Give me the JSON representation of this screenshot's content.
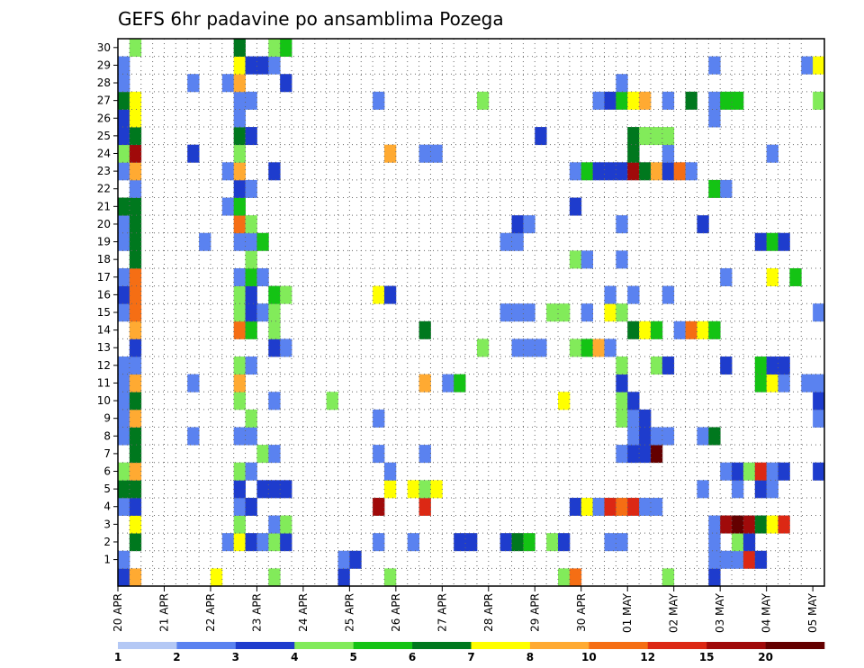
{
  "chart_data": {
    "type": "heatmap",
    "title": "GEFS 6hr padavine po ansamblima Pozega",
    "xlabel": "",
    "ylabel": "",
    "x_tick_labels": [
      "20 APR",
      "21 APR",
      "22 APR",
      "23 APR",
      "24 APR",
      "25 APR",
      "26 APR",
      "27 APR",
      "28 APR",
      "29 APR",
      "30 APR",
      "01 MAY",
      "02 MAY",
      "03 MAY",
      "04 MAY",
      "05 MAY"
    ],
    "y_tick_labels": [
      "1",
      "2",
      "3",
      "4",
      "5",
      "6",
      "7",
      "8",
      "9",
      "10",
      "11",
      "12",
      "13",
      "14",
      "15",
      "16",
      "17",
      "18",
      "19",
      "20",
      "21",
      "22",
      "23",
      "24",
      "25",
      "26",
      "27",
      "28",
      "29",
      "30"
    ],
    "steps_per_day": 4,
    "x_steps": 61,
    "y_members": 31,
    "grid": true,
    "colorbar": {
      "levels": [
        1,
        2,
        3,
        4,
        5,
        6,
        7,
        8,
        10,
        12,
        15,
        20
      ],
      "colors": [
        "#b4c8f5",
        "#5a82f0",
        "#1e3ccd",
        "#82eb5a",
        "#14c314",
        "#00781e",
        "#ffff00",
        "#ffaa32",
        "#f56e14",
        "#dc2814",
        "#a00a0a",
        "#640000"
      ]
    },
    "cells": [
      [
        0,
        0,
        2
      ],
      [
        1,
        0,
        7
      ],
      [
        8,
        0,
        6
      ],
      [
        13,
        0,
        3
      ],
      [
        19,
        0,
        2
      ],
      [
        23,
        0,
        3
      ],
      [
        38,
        0,
        3
      ],
      [
        39,
        0,
        8
      ],
      [
        47,
        0,
        3
      ],
      [
        51,
        0,
        2
      ],
      [
        0,
        1,
        1
      ],
      [
        19,
        1,
        1
      ],
      [
        20,
        1,
        2
      ],
      [
        51,
        1,
        1
      ],
      [
        52,
        1,
        1
      ],
      [
        53,
        1,
        1
      ],
      [
        54,
        1,
        9
      ],
      [
        55,
        1,
        2
      ],
      [
        1,
        2,
        5
      ],
      [
        9,
        2,
        1
      ],
      [
        10,
        2,
        6
      ],
      [
        11,
        2,
        2
      ],
      [
        12,
        2,
        1
      ],
      [
        13,
        2,
        3
      ],
      [
        14,
        2,
        2
      ],
      [
        22,
        2,
        1
      ],
      [
        25,
        2,
        1
      ],
      [
        29,
        2,
        2
      ],
      [
        30,
        2,
        2
      ],
      [
        33,
        2,
        2
      ],
      [
        34,
        2,
        5
      ],
      [
        35,
        2,
        4
      ],
      [
        37,
        2,
        3
      ],
      [
        38,
        2,
        2
      ],
      [
        42,
        2,
        1
      ],
      [
        43,
        2,
        1
      ],
      [
        51,
        2,
        1
      ],
      [
        53,
        2,
        3
      ],
      [
        54,
        2,
        2
      ],
      [
        1,
        3,
        6
      ],
      [
        10,
        3,
        3
      ],
      [
        13,
        3,
        1
      ],
      [
        14,
        3,
        3
      ],
      [
        51,
        3,
        1
      ],
      [
        52,
        3,
        10
      ],
      [
        53,
        3,
        11
      ],
      [
        54,
        3,
        10
      ],
      [
        55,
        3,
        5
      ],
      [
        56,
        3,
        6
      ],
      [
        57,
        3,
        9
      ],
      [
        0,
        4,
        1
      ],
      [
        1,
        4,
        2
      ],
      [
        10,
        4,
        1
      ],
      [
        11,
        4,
        2
      ],
      [
        22,
        4,
        10
      ],
      [
        26,
        4,
        9
      ],
      [
        39,
        4,
        2
      ],
      [
        40,
        4,
        6
      ],
      [
        41,
        4,
        1
      ],
      [
        42,
        4,
        9
      ],
      [
        43,
        4,
        8
      ],
      [
        44,
        4,
        9
      ],
      [
        45,
        4,
        1
      ],
      [
        46,
        4,
        1
      ],
      [
        0,
        5,
        5
      ],
      [
        1,
        5,
        5
      ],
      [
        10,
        5,
        2
      ],
      [
        12,
        5,
        2
      ],
      [
        13,
        5,
        2
      ],
      [
        14,
        5,
        2
      ],
      [
        23,
        5,
        6
      ],
      [
        25,
        5,
        6
      ],
      [
        26,
        5,
        3
      ],
      [
        27,
        5,
        6
      ],
      [
        50,
        5,
        1
      ],
      [
        53,
        5,
        1
      ],
      [
        55,
        5,
        2
      ],
      [
        56,
        5,
        1
      ],
      [
        0,
        6,
        3
      ],
      [
        1,
        6,
        7
      ],
      [
        10,
        6,
        3
      ],
      [
        11,
        6,
        1
      ],
      [
        23,
        6,
        1
      ],
      [
        52,
        6,
        1
      ],
      [
        53,
        6,
        2
      ],
      [
        54,
        6,
        3
      ],
      [
        55,
        6,
        9
      ],
      [
        56,
        6,
        1
      ],
      [
        57,
        6,
        2
      ],
      [
        60,
        6,
        2
      ],
      [
        1,
        7,
        5
      ],
      [
        12,
        7,
        3
      ],
      [
        13,
        7,
        1
      ],
      [
        22,
        7,
        1
      ],
      [
        26,
        7,
        1
      ],
      [
        43,
        7,
        1
      ],
      [
        44,
        7,
        2
      ],
      [
        45,
        7,
        2
      ],
      [
        46,
        7,
        11
      ],
      [
        0,
        8,
        1
      ],
      [
        1,
        8,
        5
      ],
      [
        6,
        8,
        1
      ],
      [
        10,
        8,
        1
      ],
      [
        11,
        8,
        1
      ],
      [
        44,
        8,
        1
      ],
      [
        45,
        8,
        2
      ],
      [
        46,
        8,
        1
      ],
      [
        47,
        8,
        1
      ],
      [
        50,
        8,
        1
      ],
      [
        51,
        8,
        5
      ],
      [
        0,
        9,
        1
      ],
      [
        1,
        9,
        7
      ],
      [
        11,
        9,
        3
      ],
      [
        22,
        9,
        1
      ],
      [
        43,
        9,
        3
      ],
      [
        44,
        9,
        1
      ],
      [
        45,
        9,
        2
      ],
      [
        60,
        9,
        1
      ],
      [
        0,
        10,
        1
      ],
      [
        1,
        10,
        5
      ],
      [
        10,
        10,
        3
      ],
      [
        13,
        10,
        1
      ],
      [
        18,
        10,
        3
      ],
      [
        38,
        10,
        6
      ],
      [
        43,
        10,
        3
      ],
      [
        44,
        10,
        2
      ],
      [
        60,
        10,
        2
      ],
      [
        0,
        11,
        1
      ],
      [
        1,
        11,
        7
      ],
      [
        6,
        11,
        1
      ],
      [
        10,
        11,
        7
      ],
      [
        26,
        11,
        7
      ],
      [
        28,
        11,
        1
      ],
      [
        29,
        11,
        4
      ],
      [
        43,
        11,
        2
      ],
      [
        55,
        11,
        4
      ],
      [
        56,
        11,
        6
      ],
      [
        57,
        11,
        1
      ],
      [
        59,
        11,
        1
      ],
      [
        60,
        11,
        1
      ],
      [
        0,
        12,
        1
      ],
      [
        1,
        12,
        1
      ],
      [
        10,
        12,
        3
      ],
      [
        11,
        12,
        1
      ],
      [
        43,
        12,
        3
      ],
      [
        46,
        12,
        3
      ],
      [
        47,
        12,
        2
      ],
      [
        52,
        12,
        2
      ],
      [
        55,
        12,
        4
      ],
      [
        56,
        12,
        2
      ],
      [
        57,
        12,
        2
      ],
      [
        1,
        13,
        2
      ],
      [
        13,
        13,
        2
      ],
      [
        14,
        13,
        1
      ],
      [
        31,
        13,
        3
      ],
      [
        34,
        13,
        1
      ],
      [
        35,
        13,
        1
      ],
      [
        36,
        13,
        1
      ],
      [
        39,
        13,
        3
      ],
      [
        40,
        13,
        4
      ],
      [
        41,
        13,
        7
      ],
      [
        42,
        13,
        1
      ],
      [
        1,
        14,
        7
      ],
      [
        10,
        14,
        8
      ],
      [
        11,
        14,
        4
      ],
      [
        13,
        14,
        3
      ],
      [
        26,
        14,
        5
      ],
      [
        44,
        14,
        5
      ],
      [
        45,
        14,
        6
      ],
      [
        46,
        14,
        4
      ],
      [
        48,
        14,
        1
      ],
      [
        49,
        14,
        8
      ],
      [
        50,
        14,
        6
      ],
      [
        51,
        14,
        4
      ],
      [
        0,
        15,
        1
      ],
      [
        1,
        15,
        8
      ],
      [
        10,
        15,
        3
      ],
      [
        11,
        15,
        2
      ],
      [
        12,
        15,
        1
      ],
      [
        13,
        15,
        3
      ],
      [
        33,
        15,
        1
      ],
      [
        34,
        15,
        1
      ],
      [
        35,
        15,
        1
      ],
      [
        37,
        15,
        3
      ],
      [
        38,
        15,
        3
      ],
      [
        40,
        15,
        1
      ],
      [
        42,
        15,
        6
      ],
      [
        43,
        15,
        3
      ],
      [
        60,
        15,
        1
      ],
      [
        0,
        16,
        2
      ],
      [
        1,
        16,
        8
      ],
      [
        10,
        16,
        3
      ],
      [
        11,
        16,
        2
      ],
      [
        13,
        16,
        4
      ],
      [
        14,
        16,
        3
      ],
      [
        22,
        16,
        6
      ],
      [
        23,
        16,
        2
      ],
      [
        42,
        16,
        1
      ],
      [
        44,
        16,
        1
      ],
      [
        47,
        16,
        1
      ],
      [
        0,
        17,
        1
      ],
      [
        1,
        17,
        8
      ],
      [
        10,
        17,
        1
      ],
      [
        11,
        17,
        4
      ],
      [
        12,
        17,
        1
      ],
      [
        52,
        17,
        1
      ],
      [
        56,
        17,
        6
      ],
      [
        58,
        17,
        4
      ],
      [
        1,
        18,
        5
      ],
      [
        11,
        18,
        3
      ],
      [
        39,
        18,
        3
      ],
      [
        40,
        18,
        1
      ],
      [
        43,
        18,
        1
      ],
      [
        0,
        19,
        1
      ],
      [
        1,
        19,
        5
      ],
      [
        7,
        19,
        1
      ],
      [
        10,
        19,
        1
      ],
      [
        11,
        19,
        1
      ],
      [
        12,
        19,
        4
      ],
      [
        33,
        19,
        1
      ],
      [
        34,
        19,
        1
      ],
      [
        55,
        19,
        2
      ],
      [
        56,
        19,
        4
      ],
      [
        57,
        19,
        2
      ],
      [
        0,
        20,
        1
      ],
      [
        1,
        20,
        5
      ],
      [
        10,
        20,
        8
      ],
      [
        11,
        20,
        3
      ],
      [
        34,
        20,
        2
      ],
      [
        35,
        20,
        1
      ],
      [
        43,
        20,
        1
      ],
      [
        50,
        20,
        2
      ],
      [
        0,
        21,
        5
      ],
      [
        1,
        21,
        5
      ],
      [
        9,
        21,
        1
      ],
      [
        10,
        21,
        4
      ],
      [
        39,
        21,
        2
      ],
      [
        1,
        22,
        1
      ],
      [
        10,
        22,
        2
      ],
      [
        11,
        22,
        1
      ],
      [
        51,
        22,
        4
      ],
      [
        52,
        22,
        1
      ],
      [
        0,
        23,
        1
      ],
      [
        1,
        23,
        7
      ],
      [
        9,
        23,
        1
      ],
      [
        10,
        23,
        7
      ],
      [
        13,
        23,
        2
      ],
      [
        39,
        23,
        1
      ],
      [
        40,
        23,
        4
      ],
      [
        41,
        23,
        2
      ],
      [
        42,
        23,
        2
      ],
      [
        43,
        23,
        2
      ],
      [
        44,
        23,
        10
      ],
      [
        45,
        23,
        5
      ],
      [
        46,
        23,
        7
      ],
      [
        47,
        23,
        2
      ],
      [
        48,
        23,
        8
      ],
      [
        49,
        23,
        1
      ],
      [
        0,
        24,
        3
      ],
      [
        1,
        24,
        10
      ],
      [
        6,
        24,
        2
      ],
      [
        10,
        24,
        3
      ],
      [
        23,
        24,
        7
      ],
      [
        26,
        24,
        1
      ],
      [
        27,
        24,
        1
      ],
      [
        44,
        24,
        5
      ],
      [
        47,
        24,
        1
      ],
      [
        56,
        24,
        1
      ],
      [
        0,
        25,
        2
      ],
      [
        1,
        25,
        5
      ],
      [
        10,
        25,
        5
      ],
      [
        11,
        25,
        2
      ],
      [
        36,
        25,
        2
      ],
      [
        44,
        25,
        5
      ],
      [
        45,
        25,
        3
      ],
      [
        46,
        25,
        3
      ],
      [
        47,
        25,
        3
      ],
      [
        0,
        26,
        2
      ],
      [
        1,
        26,
        6
      ],
      [
        10,
        26,
        1
      ],
      [
        51,
        26,
        1
      ],
      [
        0,
        27,
        5
      ],
      [
        1,
        27,
        6
      ],
      [
        10,
        27,
        1
      ],
      [
        11,
        27,
        1
      ],
      [
        22,
        27,
        1
      ],
      [
        31,
        27,
        3
      ],
      [
        41,
        27,
        1
      ],
      [
        42,
        27,
        2
      ],
      [
        43,
        27,
        4
      ],
      [
        44,
        27,
        6
      ],
      [
        45,
        27,
        7
      ],
      [
        47,
        27,
        1
      ],
      [
        49,
        27,
        5
      ],
      [
        51,
        27,
        1
      ],
      [
        52,
        27,
        4
      ],
      [
        53,
        27,
        4
      ],
      [
        60,
        27,
        3
      ],
      [
        0,
        28,
        1
      ],
      [
        6,
        28,
        1
      ],
      [
        9,
        28,
        1
      ],
      [
        10,
        28,
        7
      ],
      [
        14,
        28,
        2
      ],
      [
        43,
        28,
        1
      ],
      [
        0,
        29,
        1
      ],
      [
        10,
        29,
        6
      ],
      [
        11,
        29,
        2
      ],
      [
        12,
        29,
        2
      ],
      [
        13,
        29,
        1
      ],
      [
        51,
        29,
        1
      ],
      [
        59,
        29,
        1
      ],
      [
        60,
        29,
        6
      ],
      [
        1,
        30,
        3
      ],
      [
        10,
        30,
        5
      ],
      [
        13,
        30,
        3
      ],
      [
        14,
        30,
        4
      ]
    ]
  }
}
